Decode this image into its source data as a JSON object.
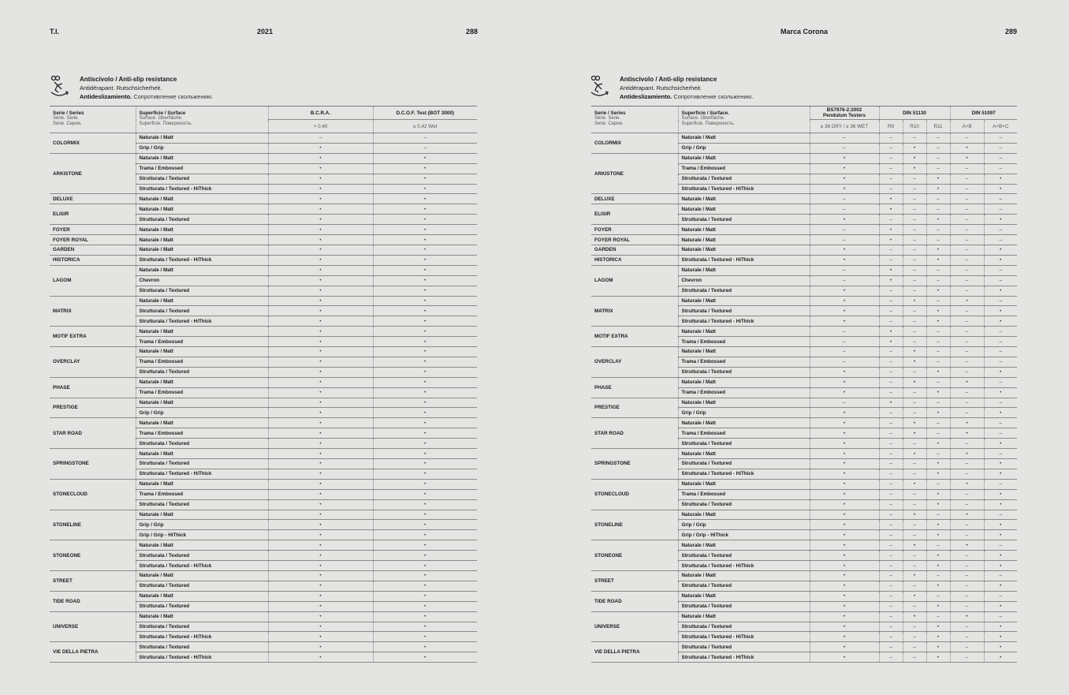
{
  "left_page": {
    "running_left": "T.I.",
    "running_center": "2021",
    "page_number": "288"
  },
  "right_page": {
    "running_center": "Marca Corona",
    "page_number": "289"
  },
  "section": {
    "icon": "anti-slip-icon",
    "title": "Antiscivolo / Anti-slip resistance",
    "line2": "Antidérapant. Rutschsicherheit.",
    "line3_bold": "Antideslizamiento.",
    "line3_rest": " Сопротивление скольжению."
  },
  "headers": {
    "series": "Serie / Series",
    "series_sub1": "Série. Serie.",
    "series_sub2": "Serie. Серия.",
    "surface_left": "Superficie / Surface",
    "surface_right": "Superficie / Surface.",
    "surface_sub1": "Surface. Oberfläche.",
    "surface_sub2": "Superficie. Поверхность.",
    "bcra": "B.C.R.A.",
    "bcra_sub": "> 0,40",
    "dcof": "D.C.O.F. Test (BOT 3000)",
    "dcof_sub": "≥ 0,42 Wet",
    "pendulum1": "BS7976-2:2002",
    "pendulum2": "Pendulum Testers",
    "pendulum_sub": "≥ 36 DRY / ≥ 36 WET",
    "din51130": "DIN 51130",
    "r9": "R9",
    "r10": "R10",
    "r11": "R11",
    "din51097": "DIN 51097",
    "ab": "A+B",
    "abc": "A+B+C"
  },
  "series": [
    {
      "name": "COLORMIX",
      "surfaces": [
        {
          "name": "Naturale / Matt",
          "left": [
            "–",
            "–"
          ],
          "right": [
            "–",
            "–",
            "–",
            "–",
            "–",
            "–"
          ]
        },
        {
          "name": "Grip / Grip",
          "left": [
            "•",
            "–"
          ],
          "right": [
            "–",
            "–",
            "•",
            "–",
            "•",
            "–"
          ]
        }
      ]
    },
    {
      "name": "ARKISTONE",
      "surfaces": [
        {
          "name": "Naturale / Matt",
          "left": [
            "•",
            "•"
          ],
          "right": [
            "•",
            "–",
            "•",
            "–",
            "•",
            "–"
          ]
        },
        {
          "name": "Trama / Embossed",
          "left": [
            "•",
            "•"
          ],
          "right": [
            "•",
            "–",
            "•",
            "–",
            "–",
            "–"
          ]
        },
        {
          "name": "Strutturata / Textured",
          "left": [
            "•",
            "•"
          ],
          "right": [
            "•",
            "–",
            "–",
            "•",
            "–",
            "•"
          ]
        },
        {
          "name": "Strutturata / Textured - HiThick",
          "left": [
            "•",
            "•"
          ],
          "right": [
            "•",
            "–",
            "–",
            "•",
            "–",
            "•"
          ]
        }
      ]
    },
    {
      "name": "DELUXE",
      "surfaces": [
        {
          "name": "Naturale / Matt",
          "left": [
            "•",
            "•"
          ],
          "right": [
            "–",
            "•",
            "–",
            "–",
            "–",
            "–"
          ]
        }
      ]
    },
    {
      "name": "ELISIR",
      "surfaces": [
        {
          "name": "Naturale / Matt",
          "left": [
            "•",
            "•"
          ],
          "right": [
            "–",
            "•",
            "–",
            "–",
            "–",
            "–"
          ]
        },
        {
          "name": "Strutturata / Textured",
          "left": [
            "•",
            "•"
          ],
          "right": [
            "•",
            "–",
            "–",
            "•",
            "–",
            "•"
          ]
        }
      ]
    },
    {
      "name": "FOYER",
      "surfaces": [
        {
          "name": "Naturale / Matt",
          "left": [
            "•",
            "•"
          ],
          "right": [
            "–",
            "•",
            "–",
            "–",
            "–",
            "–"
          ]
        }
      ]
    },
    {
      "name": "FOYER ROYAL",
      "surfaces": [
        {
          "name": "Naturale / Matt",
          "left": [
            "•",
            "•"
          ],
          "right": [
            "–",
            "•",
            "–",
            "–",
            "–",
            "–"
          ]
        }
      ]
    },
    {
      "name": "GARDEN",
      "surfaces": [
        {
          "name": "Naturale / Matt",
          "left": [
            "•",
            "•"
          ],
          "right": [
            "•",
            "–",
            "–",
            "•",
            "–",
            "•"
          ]
        }
      ]
    },
    {
      "name": "HISTORICA",
      "surfaces": [
        {
          "name": "Strutturata / Textured - HiThick",
          "left": [
            "•",
            "•"
          ],
          "right": [
            "•",
            "–",
            "–",
            "•",
            "–",
            "•"
          ]
        }
      ]
    },
    {
      "name": "LAGOM",
      "surfaces": [
        {
          "name": "Naturale / Matt",
          "left": [
            "•",
            "•"
          ],
          "right": [
            "–",
            "•",
            "–",
            "–",
            "–",
            "–"
          ]
        },
        {
          "name": "Chevron",
          "left": [
            "•",
            "•"
          ],
          "right": [
            "–",
            "•",
            "–",
            "–",
            "–",
            "–"
          ]
        },
        {
          "name": "Strutturata / Textured",
          "left": [
            "•",
            "•"
          ],
          "right": [
            "•",
            "–",
            "–",
            "•",
            "–",
            "•"
          ]
        }
      ]
    },
    {
      "name": "MATRIX",
      "surfaces": [
        {
          "name": "Naturale / Matt",
          "left": [
            "•",
            "•"
          ],
          "right": [
            "•",
            "–",
            "•",
            "–",
            "•",
            "–"
          ]
        },
        {
          "name": "Strutturata / Textured",
          "left": [
            "•",
            "•"
          ],
          "right": [
            "•",
            "–",
            "–",
            "•",
            "–",
            "•"
          ]
        },
        {
          "name": "Strutturata / Textured - HiThick",
          "left": [
            "•",
            "•"
          ],
          "right": [
            "•",
            "–",
            "–",
            "•",
            "–",
            "•"
          ]
        }
      ]
    },
    {
      "name": "MOTIF EXTRA",
      "surfaces": [
        {
          "name": "Naturale / Matt",
          "left": [
            "•",
            "•"
          ],
          "right": [
            "–",
            "•",
            "–",
            "–",
            "–",
            "–"
          ]
        },
        {
          "name": "Trama / Embossed",
          "left": [
            "•",
            "•"
          ],
          "right": [
            "–",
            "•",
            "–",
            "–",
            "–",
            "–"
          ]
        }
      ]
    },
    {
      "name": "OVERCLAY",
      "surfaces": [
        {
          "name": "Naturale / Matt",
          "left": [
            "•",
            "•"
          ],
          "right": [
            "–",
            "–",
            "•",
            "–",
            "–",
            "–"
          ]
        },
        {
          "name": "Trama / Embossed",
          "left": [
            "•",
            "•"
          ],
          "right": [
            "–",
            "–",
            "•",
            "–",
            "–",
            "–"
          ]
        },
        {
          "name": "Strutturata / Textured",
          "left": [
            "•",
            "•"
          ],
          "right": [
            "•",
            "–",
            "–",
            "•",
            "–",
            "•"
          ]
        }
      ]
    },
    {
      "name": "PHASE",
      "surfaces": [
        {
          "name": "Naturale / Matt",
          "left": [
            "•",
            "•"
          ],
          "right": [
            "•",
            "–",
            "•",
            "–",
            "•",
            "–"
          ]
        },
        {
          "name": "Trama / Embossed",
          "left": [
            "•",
            "•"
          ],
          "right": [
            "•",
            "–",
            "–",
            "•",
            "–",
            "•"
          ]
        }
      ]
    },
    {
      "name": "PRESTIGE",
      "surfaces": [
        {
          "name": "Naturale / Matt",
          "left": [
            "•",
            "•"
          ],
          "right": [
            "–",
            "•",
            "–",
            "–",
            "–",
            "–"
          ]
        },
        {
          "name": "Grip / Grip",
          "left": [
            "•",
            "•"
          ],
          "right": [
            "•",
            "–",
            "–",
            "•",
            "–",
            "•"
          ]
        }
      ]
    },
    {
      "name": "STAR ROAD",
      "surfaces": [
        {
          "name": "Naturale / Matt",
          "left": [
            "•",
            "•"
          ],
          "right": [
            "•",
            "–",
            "•",
            "–",
            "•",
            "–"
          ]
        },
        {
          "name": "Trama / Embossed",
          "left": [
            "•",
            "•"
          ],
          "right": [
            "•",
            "–",
            "•",
            "–",
            "•",
            "–"
          ]
        },
        {
          "name": "Strutturata / Textured",
          "left": [
            "•",
            "•"
          ],
          "right": [
            "•",
            "–",
            "–",
            "•",
            "–",
            "•"
          ]
        }
      ]
    },
    {
      "name": "SPRINGSTONE",
      "surfaces": [
        {
          "name": "Naturale / Matt",
          "left": [
            "•",
            "•"
          ],
          "right": [
            "•",
            "–",
            "•",
            "–",
            "•",
            "–"
          ]
        },
        {
          "name": "Strutturata / Textured",
          "left": [
            "•",
            "•"
          ],
          "right": [
            "•",
            "–",
            "–",
            "•",
            "–",
            "•"
          ]
        },
        {
          "name": "Strutturata / Textured - HiThick",
          "left": [
            "•",
            "•"
          ],
          "right": [
            "•",
            "–",
            "–",
            "•",
            "–",
            "•"
          ]
        }
      ]
    },
    {
      "name": "STONECLOUD",
      "surfaces": [
        {
          "name": "Naturale / Matt",
          "left": [
            "•",
            "•"
          ],
          "right": [
            "•",
            "–",
            "•",
            "–",
            "•",
            "–"
          ]
        },
        {
          "name": "Trama / Embossed",
          "left": [
            "•",
            "•"
          ],
          "right": [
            "•",
            "–",
            "–",
            "•",
            "–",
            "•"
          ]
        },
        {
          "name": "Strutturata / Textured",
          "left": [
            "•",
            "•"
          ],
          "right": [
            "•",
            "–",
            "–",
            "•",
            "–",
            "•"
          ]
        }
      ]
    },
    {
      "name": "STONELINE",
      "surfaces": [
        {
          "name": "Naturale / Matt",
          "left": [
            "•",
            "•"
          ],
          "right": [
            "•",
            "–",
            "•",
            "–",
            "•",
            "–"
          ]
        },
        {
          "name": "Grip / Grip",
          "left": [
            "•",
            "•"
          ],
          "right": [
            "•",
            "–",
            "–",
            "•",
            "–",
            "•"
          ]
        },
        {
          "name": "Grip / Grip - HiThick",
          "left": [
            "•",
            "•"
          ],
          "right": [
            "•",
            "–",
            "–",
            "•",
            "–",
            "•"
          ]
        }
      ]
    },
    {
      "name": "STONEONE",
      "surfaces": [
        {
          "name": "Naturale / Matt",
          "left": [
            "•",
            "•"
          ],
          "right": [
            "•",
            "–",
            "•",
            "–",
            "•",
            "–"
          ]
        },
        {
          "name": "Strutturata / Textured",
          "left": [
            "•",
            "•"
          ],
          "right": [
            "•",
            "–",
            "–",
            "•",
            "–",
            "•"
          ]
        },
        {
          "name": "Strutturata / Textured - HiThick",
          "left": [
            "•",
            "•"
          ],
          "right": [
            "•",
            "–",
            "–",
            "•",
            "–",
            "•"
          ]
        }
      ]
    },
    {
      "name": "STREET",
      "surfaces": [
        {
          "name": "Naturale / Matt",
          "left": [
            "•",
            "•"
          ],
          "right": [
            "•",
            "–",
            "•",
            "–",
            "–",
            "–"
          ]
        },
        {
          "name": "Strutturata / Textured",
          "left": [
            "•",
            "•"
          ],
          "right": [
            "•",
            "–",
            "–",
            "•",
            "–",
            "•"
          ]
        }
      ]
    },
    {
      "name": "TIDE ROAD",
      "surfaces": [
        {
          "name": "Naturale / Matt",
          "left": [
            "•",
            "•"
          ],
          "right": [
            "•",
            "–",
            "•",
            "–",
            "–",
            "–"
          ]
        },
        {
          "name": "Strutturata / Textured",
          "left": [
            "•",
            "•"
          ],
          "right": [
            "•",
            "–",
            "–",
            "•",
            "–",
            "•"
          ]
        }
      ]
    },
    {
      "name": "UNIVERSE",
      "surfaces": [
        {
          "name": "Naturale / Matt",
          "left": [
            "•",
            "•"
          ],
          "right": [
            "•",
            "–",
            "•",
            "–",
            "•",
            "–"
          ]
        },
        {
          "name": "Strutturata / Textured",
          "left": [
            "•",
            "•"
          ],
          "right": [
            "•",
            "–",
            "–",
            "•",
            "–",
            "•"
          ]
        },
        {
          "name": "Strutturata / Textured - HiThick",
          "left": [
            "•",
            "•"
          ],
          "right": [
            "•",
            "–",
            "–",
            "•",
            "–",
            "•"
          ]
        }
      ]
    },
    {
      "name": "VIE DELLA PIETRA",
      "surfaces": [
        {
          "name": "Strutturata / Textured",
          "left": [
            "•",
            "•"
          ],
          "right": [
            "•",
            "–",
            "–",
            "•",
            "–",
            "•"
          ]
        },
        {
          "name": "Strutturata / Textured - HiThick",
          "left": [
            "•",
            "•"
          ],
          "right": [
            "•",
            "–",
            "–",
            "•",
            "–",
            "•"
          ]
        }
      ]
    }
  ]
}
